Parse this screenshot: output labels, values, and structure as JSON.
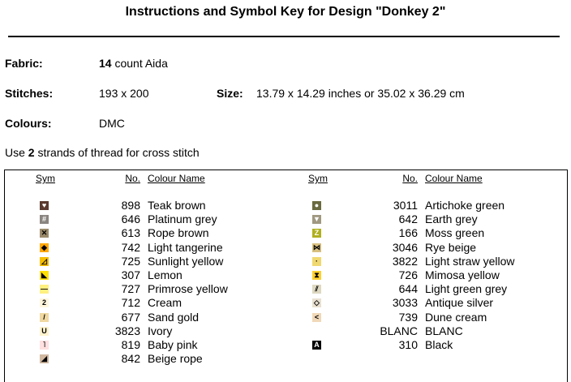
{
  "header": {
    "title": "Instructions and Symbol Key for Design \"Donkey 2\""
  },
  "info": {
    "fabric_label": "Fabric:",
    "fabric_count": "14",
    "fabric_text": "count Aida",
    "stitches_label": "Stitches:",
    "stitches": "193 x 200",
    "size_label": "Size:",
    "size": "13.79 x 14.29 inches or 35.02 x 36.29 cm",
    "colours_label": "Colours:",
    "colours": "DMC",
    "use_prefix": "Use",
    "strands": "2",
    "use_suffix": "strands of thread for cross stitch"
  },
  "table": {
    "columns": [
      "Sym",
      "No.",
      "Colour Name"
    ],
    "left": [
      {
        "symbol": "♥",
        "color": "#5a3a2e",
        "ink": "#fff",
        "number": "898",
        "name": "Teak brown"
      },
      {
        "symbol": "#",
        "color": "#8a8580",
        "ink": "#fff",
        "number": "646",
        "name": "Platinum grey"
      },
      {
        "symbol": "✕",
        "color": "#9a8a6a",
        "ink": "#000",
        "number": "613",
        "name": "Rope brown"
      },
      {
        "symbol": "◆",
        "color": "#ffa800",
        "ink": "#000",
        "number": "742",
        "name": "Light tangerine"
      },
      {
        "symbol": "◿",
        "color": "#f5bd00",
        "ink": "#000",
        "number": "725",
        "name": "Sunlight yellow"
      },
      {
        "symbol": "◣",
        "color": "#ffe000",
        "ink": "#000",
        "number": "307",
        "name": "Lemon"
      },
      {
        "symbol": "—",
        "color": "#fff080",
        "ink": "#000",
        "number": "727",
        "name": "Primrose yellow"
      },
      {
        "symbol": "2",
        "color": "#fff6dc",
        "ink": "#000",
        "number": "712",
        "name": "Cream"
      },
      {
        "symbol": "/",
        "color": "#f0d8a0",
        "ink": "#000",
        "number": "677",
        "name": "Sand gold"
      },
      {
        "symbol": "U",
        "color": "#fff3cc",
        "ink": "#000",
        "number": "3823",
        "name": "Ivory"
      },
      {
        "symbol": "˥",
        "color": "#ffe0e0",
        "ink": "#000",
        "number": "819",
        "name": "Baby pink"
      },
      {
        "symbol": "◢",
        "color": "#d0b8a0",
        "ink": "#000",
        "number": "842",
        "name": "Beige rope"
      }
    ],
    "right": [
      {
        "symbol": "●",
        "color": "#6a6a40",
        "ink": "#fff",
        "number": "3011",
        "name": "Artichoke green"
      },
      {
        "symbol": "▼",
        "color": "#a09880",
        "ink": "#fff",
        "number": "642",
        "name": "Earth grey"
      },
      {
        "symbol": "Z",
        "color": "#b0b020",
        "ink": "#fff",
        "number": "166",
        "name": "Moss green"
      },
      {
        "symbol": "⋈",
        "color": "#d8c080",
        "ink": "#000",
        "number": "3046",
        "name": "Rye beige"
      },
      {
        "symbol": "·",
        "color": "#f0d870",
        "ink": "#000",
        "number": "3822",
        "name": "Light straw yellow"
      },
      {
        "symbol": "⧗",
        "color": "#ffd030",
        "ink": "#000",
        "number": "726",
        "name": "Mimosa yellow"
      },
      {
        "symbol": "⫽",
        "color": "#ddd8c0",
        "ink": "#000",
        "number": "644",
        "name": "Light green grey"
      },
      {
        "symbol": "◇",
        "color": "#e8e0d0",
        "ink": "#000",
        "number": "3033",
        "name": "Antique silver"
      },
      {
        "symbol": "<",
        "color": "#f0d8b8",
        "ink": "#000",
        "number": "739",
        "name": "Dune cream"
      },
      {
        "number": "BLANC",
        "name": "BLANC"
      },
      {
        "symbol": "A",
        "color": "#000000",
        "ink": "#fff",
        "number": "310",
        "name": "Black"
      }
    ]
  }
}
